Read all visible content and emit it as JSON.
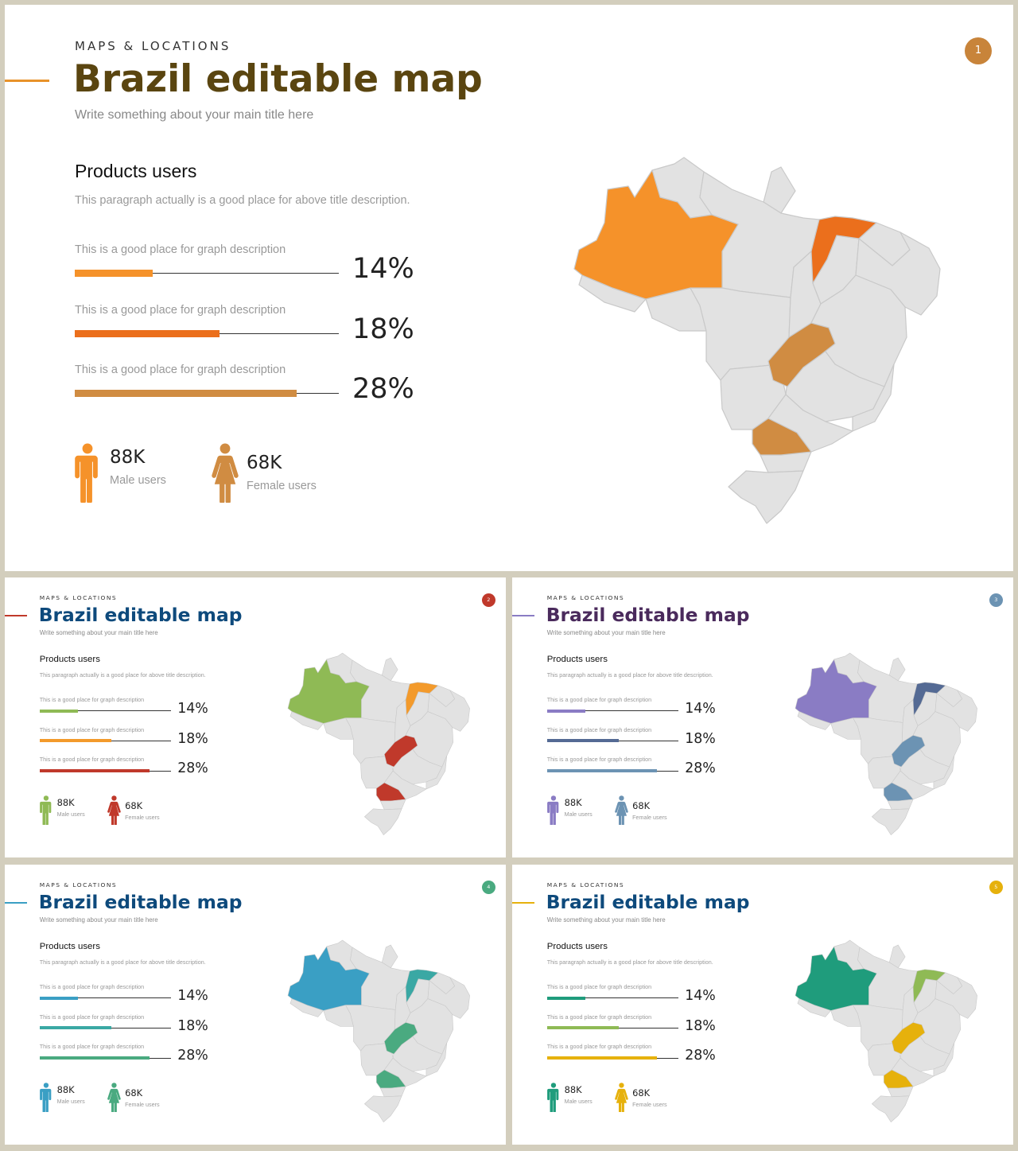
{
  "slides": [
    {
      "number": "1",
      "kicker": "MAPS & LOCATIONS",
      "title": "Brazil editable map",
      "subtitle": "Write something about your main title here",
      "section_title": "Products users",
      "section_desc": "This paragraph  actually is a good place for above title description.",
      "bars": [
        {
          "label": "This is a good place for graph description",
          "percent": "14%",
          "value": 14
        },
        {
          "label": "This is a good place for graph description",
          "percent": "18%",
          "value": 18
        },
        {
          "label": "This is a good place for graph description",
          "percent": "28%",
          "value": 28
        }
      ],
      "male": {
        "value": "88K",
        "label": "Male users"
      },
      "female": {
        "value": "68K",
        "label": "Female users"
      },
      "colors": {
        "title": "#5a4510",
        "accent": "#e8922a",
        "badge": "#c8843a",
        "bar1": "#f5922a",
        "bar2": "#eb6f1c",
        "bar3": "#d08c42",
        "male": "#f5922a",
        "female": "#d08c42",
        "region_a": "#f5922a",
        "region_b": "#eb6f1c",
        "region_c": "#d08c42",
        "region_d": "#d08c42"
      }
    },
    {
      "number": "2",
      "kicker": "MAPS & LOCATIONS",
      "title": "Brazil editable map",
      "subtitle": "Write something about your main title here",
      "section_title": "Products users",
      "section_desc": "This paragraph  actually is a good place for above title description.",
      "bars": [
        {
          "label": "This is a good place for graph description",
          "percent": "14%",
          "value": 14
        },
        {
          "label": "This is a good place for graph description",
          "percent": "18%",
          "value": 18
        },
        {
          "label": "This is a good place for graph description",
          "percent": "28%",
          "value": 28
        }
      ],
      "male": {
        "value": "88K",
        "label": "Male users"
      },
      "female": {
        "value": "68K",
        "label": "Female users"
      },
      "colors": {
        "title": "#0e4a7c",
        "accent": "#c0392b",
        "badge": "#c0392b",
        "bar1": "#8fba55",
        "bar2": "#f39a2b",
        "bar3": "#c0392b",
        "male": "#8fba55",
        "female": "#c0392b",
        "region_a": "#8fba55",
        "region_b": "#f39a2b",
        "region_c": "#c0392b",
        "region_d": "#c0392b"
      }
    },
    {
      "number": "3",
      "kicker": "MAPS & LOCATIONS",
      "title": "Brazil editable map",
      "subtitle": "Write something about your main title here",
      "section_title": "Products users",
      "section_desc": "This paragraph  actually is a good place for above title description.",
      "bars": [
        {
          "label": "This is a good place for graph description",
          "percent": "14%",
          "value": 14
        },
        {
          "label": "This is a good place for graph description",
          "percent": "18%",
          "value": 18
        },
        {
          "label": "This is a good place for graph description",
          "percent": "28%",
          "value": 28
        }
      ],
      "male": {
        "value": "88K",
        "label": "Male users"
      },
      "female": {
        "value": "68K",
        "label": "Female users"
      },
      "colors": {
        "title": "#4a2a5c",
        "accent": "#8a7cc4",
        "badge": "#6c93b3",
        "bar1": "#8a7cc4",
        "bar2": "#546a94",
        "bar3": "#6c93b3",
        "male": "#8a7cc4",
        "female": "#6c93b3",
        "region_a": "#8a7cc4",
        "region_b": "#546a94",
        "region_c": "#6c93b3",
        "region_d": "#6c93b3"
      }
    },
    {
      "number": "4",
      "kicker": "MAPS & LOCATIONS",
      "title": "Brazil editable map",
      "subtitle": "Write something about your main title here",
      "section_title": "Products users",
      "section_desc": "This paragraph  actually is a good place for above title description.",
      "bars": [
        {
          "label": "This is a good place for graph description",
          "percent": "14%",
          "value": 14
        },
        {
          "label": "This is a good place for graph description",
          "percent": "18%",
          "value": 18
        },
        {
          "label": "This is a good place for graph description",
          "percent": "28%",
          "value": 28
        }
      ],
      "male": {
        "value": "88K",
        "label": "Male users"
      },
      "female": {
        "value": "68K",
        "label": "Female users"
      },
      "colors": {
        "title": "#0e4a7c",
        "accent": "#3a9fc4",
        "badge": "#4aaa80",
        "bar1": "#3a9fc4",
        "bar2": "#3aa8a4",
        "bar3": "#4aaa80",
        "male": "#3a9fc4",
        "female": "#4aaa80",
        "region_a": "#3a9fc4",
        "region_b": "#3aa8a4",
        "region_c": "#4aaa80",
        "region_d": "#4aaa80"
      }
    },
    {
      "number": "5",
      "kicker": "MAPS & LOCATIONS",
      "title": "Brazil editable map",
      "subtitle": "Write something about your main title here",
      "section_title": "Products users",
      "section_desc": "This paragraph  actually is a good place for above title description.",
      "bars": [
        {
          "label": "This is a good place for graph description",
          "percent": "14%",
          "value": 14
        },
        {
          "label": "This is a good place for graph description",
          "percent": "18%",
          "value": 18
        },
        {
          "label": "This is a good place for graph description",
          "percent": "28%",
          "value": 28
        }
      ],
      "male": {
        "value": "88K",
        "label": "Male users"
      },
      "female": {
        "value": "68K",
        "label": "Female users"
      },
      "colors": {
        "title": "#0e4a7c",
        "accent": "#e6b10c",
        "badge": "#e6b10c",
        "bar1": "#1f9c7c",
        "bar2": "#8fba55",
        "bar3": "#e6b10c",
        "male": "#1f9c7c",
        "female": "#e6b10c",
        "region_a": "#1f9c7c",
        "region_b": "#8fba55",
        "region_c": "#e6b10c",
        "region_d": "#e6b10c"
      }
    }
  ]
}
